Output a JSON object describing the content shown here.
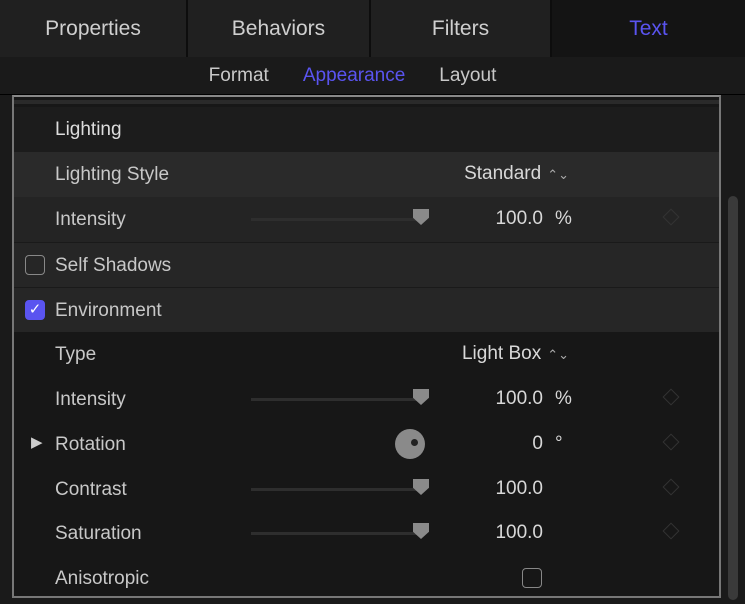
{
  "tabs": [
    {
      "label": "Properties"
    },
    {
      "label": "Behaviors"
    },
    {
      "label": "Filters"
    },
    {
      "label": "Text",
      "active": true
    }
  ],
  "subtabs": [
    {
      "label": "Format"
    },
    {
      "label": "Appearance",
      "active": true
    },
    {
      "label": "Layout"
    }
  ],
  "section": {
    "title": "Lighting"
  },
  "rows": {
    "lighting_style": {
      "label": "Lighting Style",
      "value": "Standard"
    },
    "intensity": {
      "label": "Intensity",
      "value": "100.0",
      "unit": "%",
      "slider_percent": 100
    },
    "self_shadows": {
      "label": "Self Shadows",
      "checked": false
    },
    "environment": {
      "label": "Environment",
      "checked": true
    },
    "type": {
      "label": "Type",
      "value": "Light Box"
    },
    "env_intensity": {
      "label": "Intensity",
      "value": "100.0",
      "unit": "%",
      "slider_percent": 100
    },
    "rotation": {
      "label": "Rotation",
      "value": "0",
      "unit": "°"
    },
    "contrast": {
      "label": "Contrast",
      "value": "100.0",
      "slider_percent": 100
    },
    "saturation": {
      "label": "Saturation",
      "value": "100.0",
      "slider_percent": 100
    },
    "anisotropic": {
      "label": "Anisotropic",
      "checked": false
    }
  },
  "colors": {
    "accent": "#5a54f0",
    "background": "#1a1a1a"
  }
}
